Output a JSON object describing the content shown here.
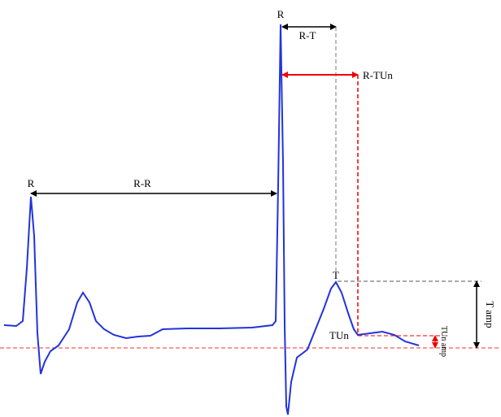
{
  "labels": {
    "r_first": "R",
    "r_second": "R",
    "r_r": "R-R",
    "r_t": "R-T",
    "r_tun": "R-TUn",
    "t": "T",
    "tun": "TUn",
    "t_amp": "T amp",
    "tun_amp": "TUn amp"
  }
}
